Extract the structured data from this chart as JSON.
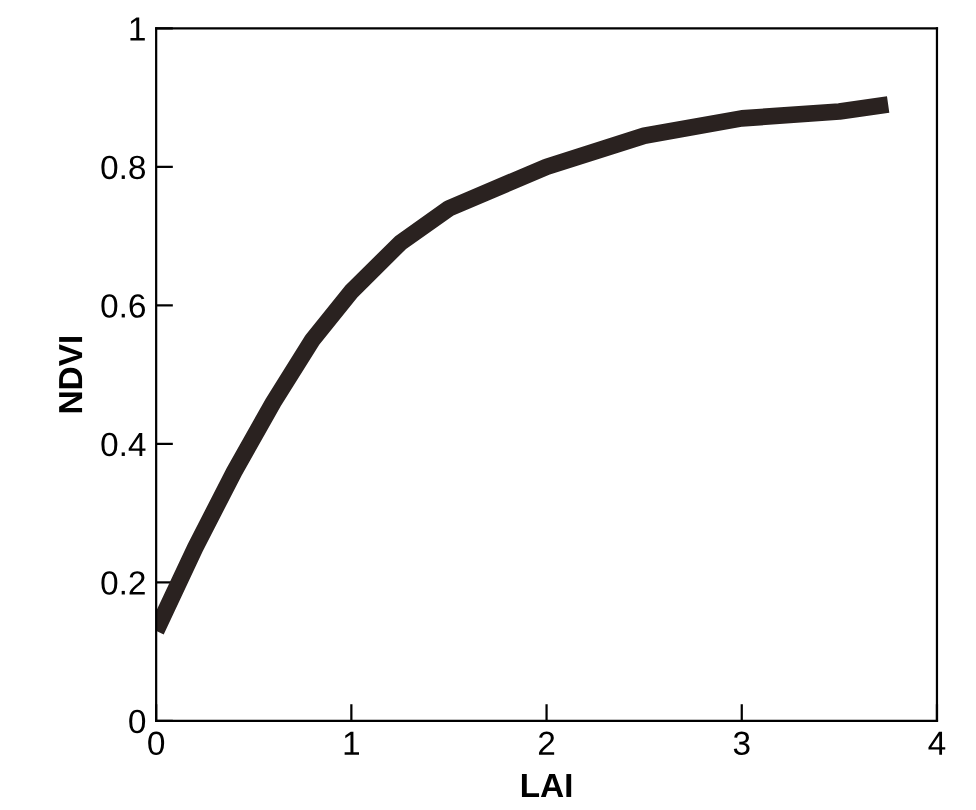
{
  "chart_data": {
    "type": "line",
    "xlabel": "LAI",
    "ylabel": "NDVI",
    "x": [
      0,
      0.2,
      0.4,
      0.6,
      0.8,
      1.0,
      1.25,
      1.5,
      2.0,
      2.5,
      3.0,
      3.5,
      3.75
    ],
    "series": [
      {
        "color": "#2a2220",
        "values": [
          0.13,
          0.25,
          0.36,
          0.46,
          0.55,
          0.62,
          0.69,
          0.74,
          0.8,
          0.845,
          0.87,
          0.88,
          0.89
        ]
      }
    ],
    "xlim": [
      0,
      4
    ],
    "ylim": [
      0,
      1
    ],
    "xticks": [
      0,
      1,
      2,
      3,
      4
    ],
    "yticks": [
      0,
      0.2,
      0.4,
      0.6,
      0.8,
      1
    ],
    "grid": false,
    "legend": false,
    "marker": "none",
    "line_style": "solid"
  }
}
